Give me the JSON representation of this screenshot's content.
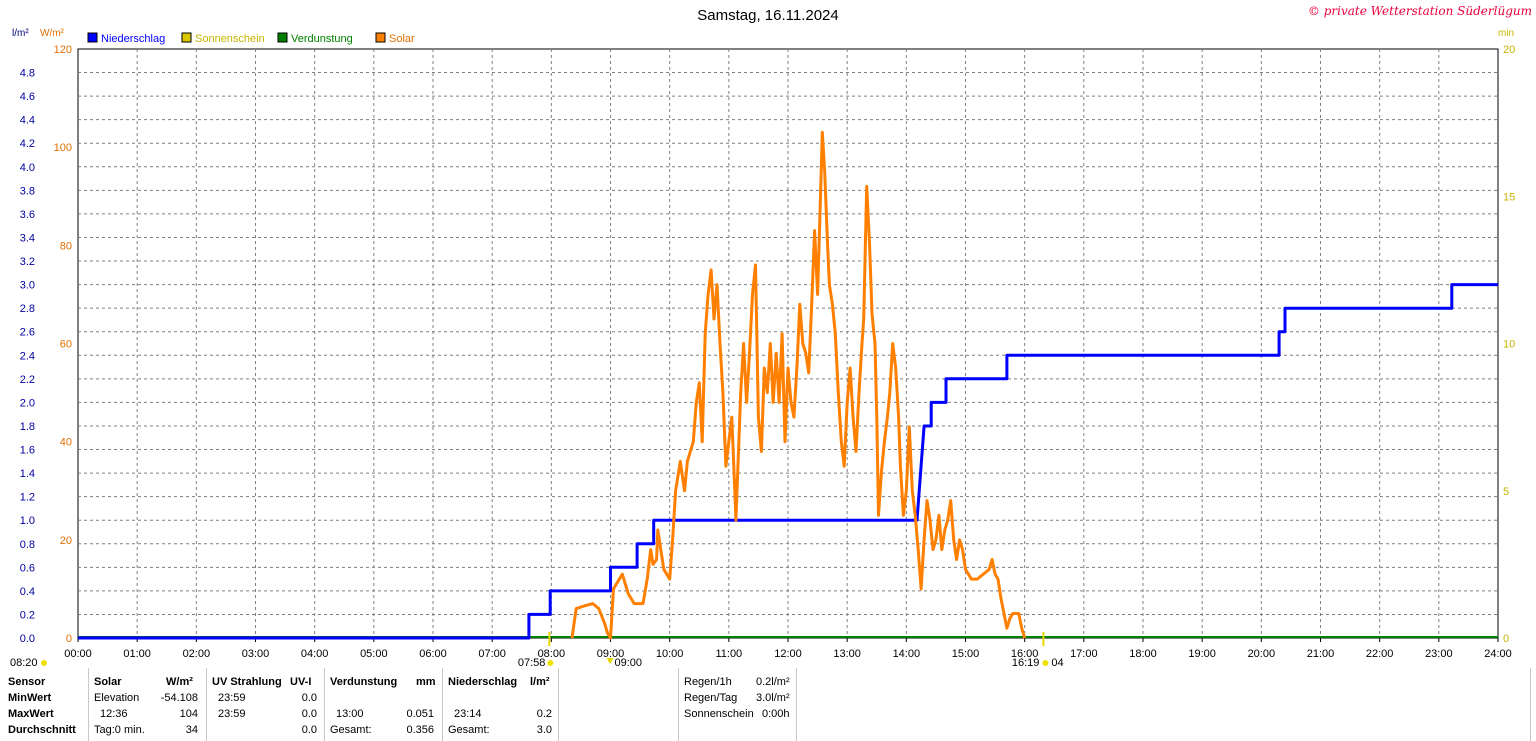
{
  "title": "Samstag, 16.11.2024",
  "copyright": "© private Wetterstation Süderlügum",
  "unit_left_1": "l/m²",
  "unit_left_2": "W/m²",
  "unit_right": "min",
  "legend": [
    {
      "label": "Niederschlag",
      "color": "#0000ff"
    },
    {
      "label": "Sonnenschein",
      "color": "#d8c800"
    },
    {
      "label": "Verdunstung",
      "color": "#008000"
    },
    {
      "label": "Solar",
      "color": "#ff8000"
    }
  ],
  "sun_markers": {
    "sunrise_bottom": "08:20",
    "sunrise": "07:58",
    "solar_start": "09:00",
    "solar_start_label": "09:00",
    "sunset": "16:19",
    "sunset_tail": "04"
  },
  "chart_data": {
    "type": "line",
    "x_range": [
      "00:00",
      "24:00"
    ],
    "x_ticks": [
      "00:00",
      "01:00",
      "02:00",
      "03:00",
      "04:00",
      "05:00",
      "06:00",
      "07:00",
      "08:00",
      "09:00",
      "10:00",
      "11:00",
      "12:00",
      "13:00",
      "14:00",
      "15:00",
      "16:00",
      "17:00",
      "18:00",
      "19:00",
      "20:00",
      "21:00",
      "22:00",
      "23:00",
      "24:00"
    ],
    "y_left_rain_range": [
      0,
      5.0
    ],
    "y_left_rain_ticks": [
      "0.0",
      "0.2",
      "0.4",
      "0.6",
      "0.8",
      "1.0",
      "1.2",
      "1.4",
      "1.6",
      "1.8",
      "2.0",
      "2.2",
      "2.4",
      "2.6",
      "2.8",
      "3.0",
      "3.2",
      "3.4",
      "3.6",
      "3.8",
      "4.0",
      "4.2",
      "4.4",
      "4.6",
      "4.8"
    ],
    "y_left_solar_range": [
      0,
      120
    ],
    "y_left_solar_ticks": [
      "0",
      "20",
      "40",
      "60",
      "80",
      "100",
      "120"
    ],
    "y_right_range": [
      0,
      20
    ],
    "y_right_ticks": [
      "0",
      "5",
      "10",
      "15",
      "20"
    ],
    "grid": true,
    "series": [
      {
        "name": "Niederschlag",
        "color": "#0000ff",
        "points": [
          [
            0,
            0
          ],
          [
            7.62,
            0
          ],
          [
            7.62,
            0.2
          ],
          [
            7.98,
            0.2
          ],
          [
            7.98,
            0.4
          ],
          [
            9.0,
            0.4
          ],
          [
            9.0,
            0.6
          ],
          [
            9.45,
            0.6
          ],
          [
            9.45,
            0.8
          ],
          [
            9.73,
            0.8
          ],
          [
            9.73,
            1.0
          ],
          [
            14.18,
            1.0
          ],
          [
            14.3,
            1.8
          ],
          [
            14.42,
            1.8
          ],
          [
            14.42,
            2.0
          ],
          [
            14.67,
            2.0
          ],
          [
            14.67,
            2.2
          ],
          [
            15.7,
            2.2
          ],
          [
            15.7,
            2.4
          ],
          [
            20.3,
            2.4
          ],
          [
            20.3,
            2.6
          ],
          [
            20.4,
            2.6
          ],
          [
            20.4,
            2.8
          ],
          [
            23.22,
            2.8
          ],
          [
            23.22,
            3.0
          ],
          [
            24,
            3.0
          ]
        ]
      },
      {
        "name": "Solar",
        "color": "#ff8000",
        "points": [
          [
            8.35,
            0
          ],
          [
            8.42,
            6
          ],
          [
            8.55,
            6.5
          ],
          [
            8.7,
            7
          ],
          [
            8.8,
            6
          ],
          [
            8.9,
            3
          ],
          [
            8.95,
            1
          ],
          [
            9.0,
            0
          ],
          [
            9.05,
            10
          ],
          [
            9.1,
            11
          ],
          [
            9.2,
            13
          ],
          [
            9.3,
            9
          ],
          [
            9.4,
            7
          ],
          [
            9.55,
            7
          ],
          [
            9.62,
            12
          ],
          [
            9.68,
            18
          ],
          [
            9.72,
            15
          ],
          [
            9.78,
            16
          ],
          [
            9.8,
            22
          ],
          [
            9.9,
            14
          ],
          [
            10.0,
            12
          ],
          [
            10.05,
            20
          ],
          [
            10.1,
            30
          ],
          [
            10.18,
            36
          ],
          [
            10.25,
            30
          ],
          [
            10.3,
            36
          ],
          [
            10.4,
            40
          ],
          [
            10.45,
            48
          ],
          [
            10.5,
            52
          ],
          [
            10.55,
            40
          ],
          [
            10.6,
            62
          ],
          [
            10.65,
            70
          ],
          [
            10.7,
            75
          ],
          [
            10.75,
            65
          ],
          [
            10.8,
            72
          ],
          [
            10.85,
            60
          ],
          [
            10.9,
            50
          ],
          [
            10.95,
            35
          ],
          [
            11.0,
            40
          ],
          [
            11.05,
            45
          ],
          [
            11.1,
            30
          ],
          [
            11.12,
            24
          ],
          [
            11.2,
            50
          ],
          [
            11.25,
            60
          ],
          [
            11.3,
            48
          ],
          [
            11.35,
            58
          ],
          [
            11.4,
            70
          ],
          [
            11.45,
            76
          ],
          [
            11.5,
            45
          ],
          [
            11.55,
            38
          ],
          [
            11.6,
            55
          ],
          [
            11.65,
            50
          ],
          [
            11.7,
            60
          ],
          [
            11.75,
            48
          ],
          [
            11.8,
            58
          ],
          [
            11.85,
            48
          ],
          [
            11.9,
            62
          ],
          [
            11.95,
            40
          ],
          [
            12.0,
            55
          ],
          [
            12.05,
            48
          ],
          [
            12.1,
            45
          ],
          [
            12.15,
            55
          ],
          [
            12.2,
            68
          ],
          [
            12.25,
            60
          ],
          [
            12.3,
            58
          ],
          [
            12.35,
            54
          ],
          [
            12.4,
            68
          ],
          [
            12.45,
            83
          ],
          [
            12.5,
            70
          ],
          [
            12.55,
            90
          ],
          [
            12.58,
            103
          ],
          [
            12.62,
            95
          ],
          [
            12.67,
            80
          ],
          [
            12.7,
            72
          ],
          [
            12.75,
            68
          ],
          [
            12.8,
            62
          ],
          [
            12.85,
            50
          ],
          [
            12.9,
            40
          ],
          [
            12.95,
            35
          ],
          [
            13.0,
            48
          ],
          [
            13.05,
            55
          ],
          [
            13.1,
            45
          ],
          [
            13.15,
            38
          ],
          [
            13.2,
            50
          ],
          [
            13.25,
            60
          ],
          [
            13.28,
            65
          ],
          [
            13.33,
            92
          ],
          [
            13.38,
            80
          ],
          [
            13.42,
            66
          ],
          [
            13.47,
            60
          ],
          [
            13.5,
            45
          ],
          [
            13.53,
            25
          ],
          [
            13.58,
            34
          ],
          [
            13.63,
            40
          ],
          [
            13.68,
            45
          ],
          [
            13.72,
            50
          ],
          [
            13.77,
            60
          ],
          [
            13.82,
            55
          ],
          [
            13.87,
            45
          ],
          [
            13.9,
            35
          ],
          [
            13.95,
            25
          ],
          [
            14.0,
            30
          ],
          [
            14.05,
            43
          ],
          [
            14.1,
            30
          ],
          [
            14.15,
            25
          ],
          [
            14.2,
            18
          ],
          [
            14.25,
            10
          ],
          [
            14.3,
            20
          ],
          [
            14.35,
            28
          ],
          [
            14.4,
            24
          ],
          [
            14.45,
            18
          ],
          [
            14.5,
            20
          ],
          [
            14.55,
            25
          ],
          [
            14.6,
            18
          ],
          [
            14.65,
            22
          ],
          [
            14.7,
            24
          ],
          [
            14.75,
            28
          ],
          [
            14.8,
            20
          ],
          [
            14.85,
            16
          ],
          [
            14.9,
            20
          ],
          [
            14.95,
            18
          ],
          [
            15.0,
            14
          ],
          [
            15.1,
            12
          ],
          [
            15.2,
            12
          ],
          [
            15.3,
            13
          ],
          [
            15.4,
            14
          ],
          [
            15.45,
            16
          ],
          [
            15.5,
            13
          ],
          [
            15.55,
            12
          ],
          [
            15.6,
            8
          ],
          [
            15.65,
            5
          ],
          [
            15.7,
            2
          ],
          [
            15.75,
            4
          ],
          [
            15.8,
            5
          ],
          [
            15.9,
            5
          ],
          [
            15.95,
            2
          ],
          [
            16.0,
            0
          ]
        ]
      }
    ]
  },
  "stats": {
    "row_labels": [
      "Sensor",
      "MinWert",
      "MaxWert",
      "Durchschnitt"
    ],
    "solar": {
      "head": "Solar",
      "unit": "W/m²",
      "min_time": "Elevation",
      "min_val": "-54.108",
      "max_time": "12:36",
      "max_val": "104",
      "avg_time": "Tag:0 min.",
      "avg_val": "34"
    },
    "uv": {
      "head": "UV Strahlung",
      "unit": "UV-I",
      "min_time": "23:59",
      "min_val": "0.0",
      "max_time": "23:59",
      "max_val": "0.0",
      "avg_time": "",
      "avg_val": "0.0"
    },
    "evap": {
      "head": "Verdunstung",
      "unit": "mm",
      "min_time": "",
      "min_val": "",
      "max_time": "13:00",
      "max_val": "0.051",
      "avg_time": "Gesamt:",
      "avg_val": "0.356"
    },
    "rain": {
      "head": "Niederschlag",
      "unit": "l/m²",
      "min_time": "",
      "min_val": "",
      "max_time": "23:14",
      "max_val": "0.2",
      "avg_time": "Gesamt:",
      "avg_val": "3.0"
    },
    "extra": [
      {
        "label": "Regen/1h",
        "value": "0.2l/m²"
      },
      {
        "label": "Regen/Tag",
        "value": "3.0l/m²"
      },
      {
        "label": "Sonnenschein",
        "value": "0:00h"
      }
    ]
  }
}
